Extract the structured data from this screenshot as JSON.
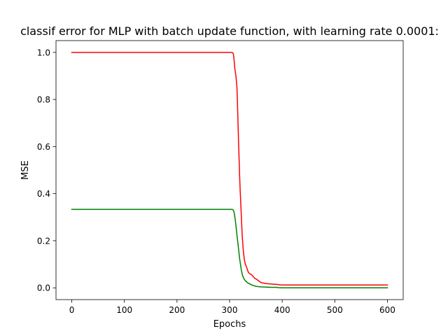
{
  "chart_data": {
    "type": "line",
    "title": "classif error for MLP with batch update function, with learning rate 0.0001:",
    "xlabel": "Epochs",
    "ylabel": "MSE",
    "xlim": [
      -30,
      630
    ],
    "ylim": [
      -0.05,
      1.05
    ],
    "x_ticks": [
      0,
      100,
      200,
      300,
      400,
      500,
      600
    ],
    "x_tick_labels": [
      "0",
      "100",
      "200",
      "300",
      "400",
      "500",
      "600"
    ],
    "y_ticks": [
      0.0,
      0.2,
      0.4,
      0.6,
      0.8,
      1.0
    ],
    "y_tick_labels": [
      "0.0",
      "0.2",
      "0.4",
      "0.6",
      "0.8",
      "1.0"
    ],
    "grid": false,
    "legend": false,
    "series": [
      {
        "color": "#ff0000",
        "x": [
          0,
          300,
          305,
          307,
          308,
          310,
          312,
          314,
          315,
          316,
          317,
          318,
          319,
          320,
          321,
          322,
          323,
          324,
          325,
          326,
          327,
          328,
          330,
          332,
          334,
          336,
          338,
          340,
          342,
          344,
          346,
          348,
          350,
          352,
          355,
          358,
          360,
          365,
          370,
          375,
          380,
          385,
          390,
          392,
          400,
          450,
          500,
          550,
          600
        ],
        "y": [
          1.0,
          1.0,
          1.0,
          0.995,
          0.98,
          0.93,
          0.9,
          0.85,
          0.78,
          0.7,
          0.62,
          0.55,
          0.48,
          0.42,
          0.37,
          0.32,
          0.27,
          0.22,
          0.19,
          0.16,
          0.14,
          0.12,
          0.1,
          0.09,
          0.075,
          0.065,
          0.06,
          0.058,
          0.055,
          0.05,
          0.045,
          0.04,
          0.038,
          0.035,
          0.03,
          0.025,
          0.022,
          0.02,
          0.018,
          0.017,
          0.016,
          0.015,
          0.015,
          0.013,
          0.012,
          0.012,
          0.012,
          0.012,
          0.012
        ]
      },
      {
        "color": "#008000",
        "x": [
          0,
          300,
          305,
          307,
          308,
          309,
          310,
          311,
          312,
          313,
          314,
          315,
          316,
          317,
          318,
          319,
          320,
          321,
          322,
          323,
          324,
          325,
          326,
          327,
          328,
          330,
          332,
          334,
          336,
          338,
          340,
          342,
          345,
          348,
          350,
          355,
          360,
          370,
          380,
          390,
          392,
          400,
          450,
          500,
          550,
          600
        ],
        "y": [
          0.333,
          0.333,
          0.333,
          0.33,
          0.325,
          0.315,
          0.3,
          0.285,
          0.265,
          0.245,
          0.225,
          0.205,
          0.185,
          0.165,
          0.145,
          0.125,
          0.11,
          0.095,
          0.08,
          0.068,
          0.058,
          0.05,
          0.045,
          0.04,
          0.036,
          0.03,
          0.026,
          0.022,
          0.019,
          0.017,
          0.015,
          0.012,
          0.01,
          0.008,
          0.006,
          0.005,
          0.004,
          0.003,
          0.002,
          0.002,
          0.001,
          0.0,
          0.0,
          0.0,
          0.0,
          0.0
        ]
      }
    ]
  }
}
